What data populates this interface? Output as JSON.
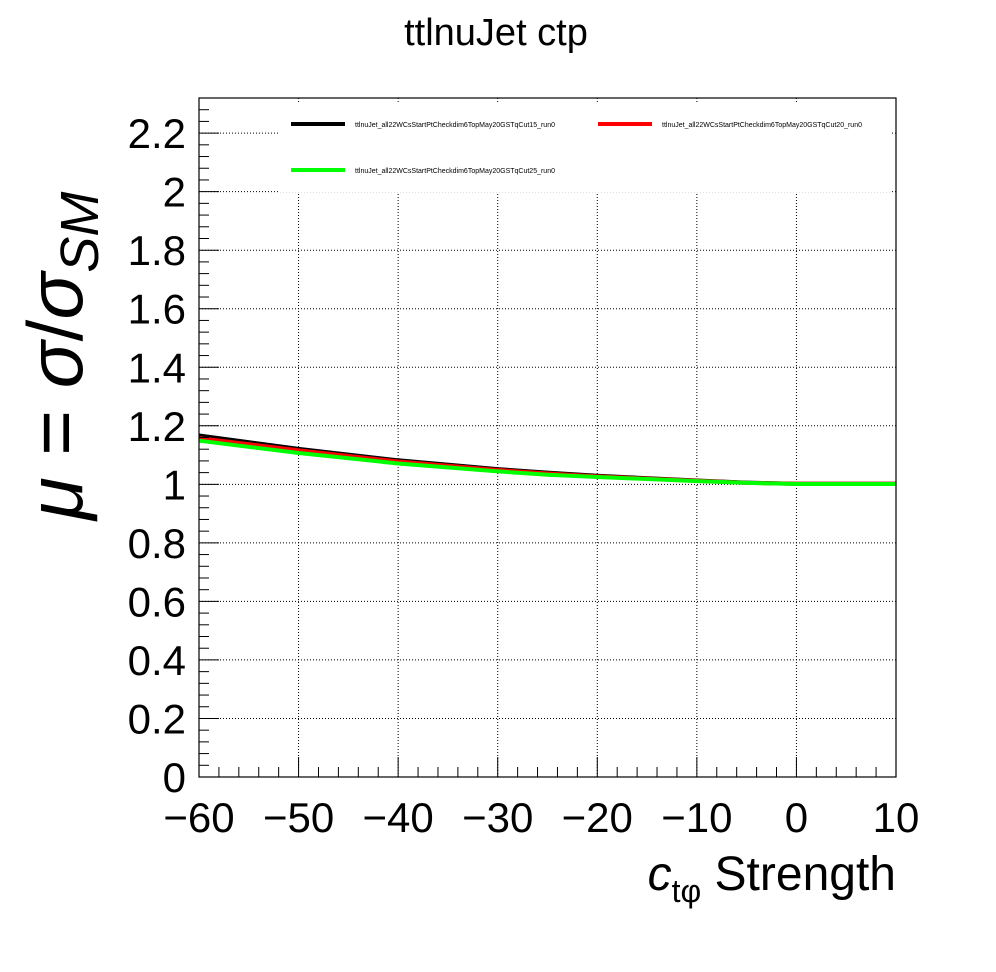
{
  "chart_data": {
    "type": "line",
    "title": "ttlnuJet ctp",
    "xlabel": {
      "var": "c",
      "sub": "tφ",
      "rest": " Strength"
    },
    "ylabel": {
      "mu": "μ",
      "eq": " = ",
      "sigma1": "σ",
      "slash": "/",
      "sigma2": "σ",
      "sub": "SM"
    },
    "xlim": [
      -60,
      10
    ],
    "ylim": [
      0,
      2.32
    ],
    "x_ticks": [
      -60,
      -50,
      -40,
      -30,
      -20,
      -10,
      0,
      10
    ],
    "x_tick_labels": [
      "−60",
      "−50",
      "−40",
      "−30",
      "−20",
      "−10",
      "0",
      "10"
    ],
    "y_ticks": [
      0,
      0.2,
      0.4,
      0.6,
      0.8,
      1,
      1.2,
      1.4,
      1.6,
      1.8,
      2,
      2.2
    ],
    "y_tick_labels": [
      "0",
      "0.2",
      "0.4",
      "0.6",
      "0.8",
      "1",
      "1.2",
      "1.4",
      "1.6",
      "1.8",
      "2",
      "2.2"
    ],
    "grid": true,
    "legend_position": "top",
    "x": [
      -60,
      -50,
      -40,
      -30,
      -25,
      -20,
      -10,
      -5,
      0,
      10
    ],
    "series": [
      {
        "name": "ttlnuJet_all22WCsStartPtCheckdim6TopMay20GSTqCut15_run0",
        "color": "#000000",
        "values": [
          1.167,
          1.121,
          1.082,
          1.052,
          1.04,
          1.029,
          1.013,
          1.006,
          1.002,
          1.002
        ]
      },
      {
        "name": "ttlnuJet_all22WCsStartPtCheckdim6TopMay20GSTqCut20_run0",
        "color": "#ff0000",
        "values": [
          1.158,
          1.116,
          1.078,
          1.049,
          1.037,
          1.027,
          1.012,
          1.005,
          1.002,
          1.002
        ]
      },
      {
        "name": "ttlnuJet_all22WCsStartPtCheckdim6TopMay20GSTqCut25_run0",
        "color": "#00ff00",
        "values": [
          1.149,
          1.107,
          1.071,
          1.044,
          1.033,
          1.025,
          1.011,
          1.005,
          1.001,
          1.001
        ]
      }
    ]
  }
}
